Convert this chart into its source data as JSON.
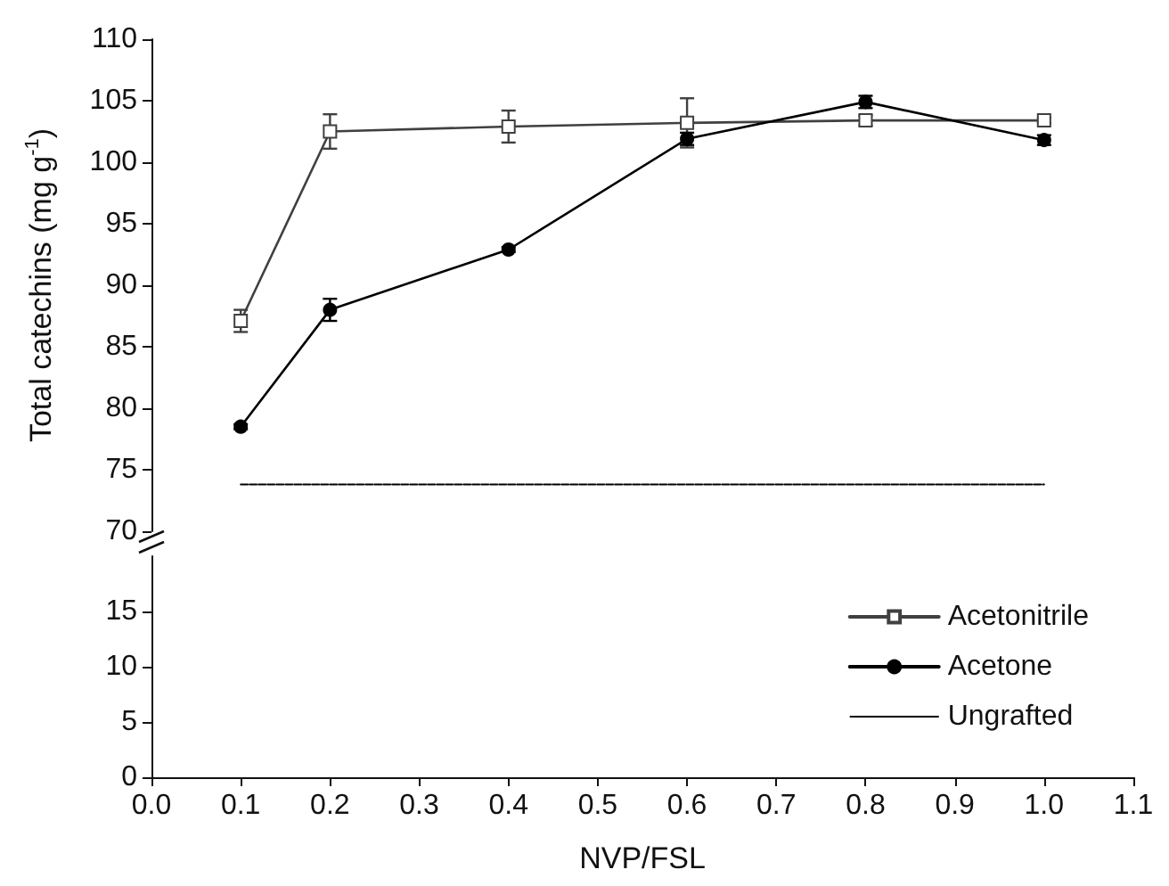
{
  "chart_data": [
    {
      "type": "line",
      "ylabel": "Total catechins (mg g$^{-1}$)",
      "xlim": [
        0,
        1.1
      ],
      "ylim": [
        70,
        110
      ],
      "yticks": [
        70,
        75,
        80,
        85,
        90,
        95,
        100,
        105,
        110
      ],
      "tick_labels": "y",
      "grid": false,
      "legend": "bottom right",
      "series": [
        {
          "name": "Acetonitrile",
          "color": "#404040",
          "marker": "square",
          "x": [
            0.1,
            0.2,
            0.4,
            0.6,
            0.8,
            1.0
          ],
          "values": [
            87.1,
            102.5,
            102.9,
            103.2,
            103.4,
            103.4
          ],
          "errors": [
            0.9,
            1.4,
            1.3,
            2,
            0.4,
            0.2
          ]
        },
        {
          "name": "Acetone",
          "color": "#000000",
          "marker": "circle",
          "x": [
            0.1,
            0.2,
            0.4,
            0.6,
            0.8,
            1.0
          ],
          "values": [
            78.5,
            88.0,
            92.9,
            101.9,
            104.9,
            101.8
          ],
          "errors": [
            0.2,
            0.9,
            0.2,
            0.5,
            0.5,
            0.4
          ]
        },
        {
          "name": "Ungrafted",
          "color": "#000000",
          "marker": "none",
          "line_style": "dashed",
          "x": [
            0.1,
            1.0
          ],
          "values": [
            73.8,
            73.8
          ]
        }
      ]
    },
    {
      "type": "line",
      "xlabel": "NVP/FSL",
      "xlim": [
        0,
        1.1
      ],
      "xticks": [
        {
          "value": 0,
          "label": "0.0"
        },
        0.1,
        0.2,
        0.3,
        0.4,
        0.5,
        0.6,
        0.7,
        0.8,
        0.9,
        {
          "value": 1,
          "label": "1.0"
        },
        1.1
      ],
      "ylim": [
        0,
        20
      ],
      "yticks": [
        0,
        5,
        10,
        15
      ],
      "grid": false
    }
  ]
}
